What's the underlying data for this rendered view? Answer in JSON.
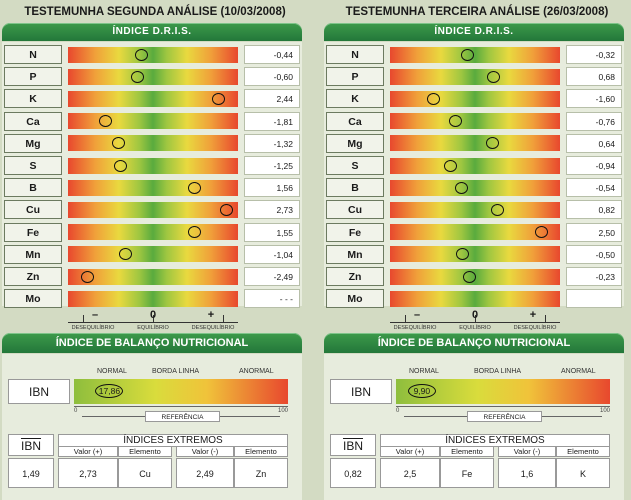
{
  "panels": [
    {
      "title": "TESTEMUNHA SEGUNDA ANÁLISE (10/03/2008)",
      "dris_header": "ÍNDICE D.R.I.S.",
      "rows": [
        {
          "el": "N",
          "val": "-0,44",
          "pos": -0.44
        },
        {
          "el": "P",
          "val": "-0,60",
          "pos": -0.6
        },
        {
          "el": "K",
          "val": "2,44",
          "pos": 2.44
        },
        {
          "el": "Ca",
          "val": "-1,81",
          "pos": -1.81
        },
        {
          "el": "Mg",
          "val": "-1,32",
          "pos": -1.32
        },
        {
          "el": "S",
          "val": "-1,25",
          "pos": -1.25
        },
        {
          "el": "B",
          "val": "1,56",
          "pos": 1.56
        },
        {
          "el": "Cu",
          "val": "2,73",
          "pos": 2.73
        },
        {
          "el": "Fe",
          "val": "1,55",
          "pos": 1.55
        },
        {
          "el": "Mn",
          "val": "-1,04",
          "pos": -1.04
        },
        {
          "el": "Zn",
          "val": "-2,49",
          "pos": -2.49
        },
        {
          "el": "Mo",
          "val": "- - -",
          "pos": null
        }
      ],
      "scale": {
        "minus": "–",
        "zero": "0",
        "plus": "+",
        "l1": "DESEQUILÍBRIO",
        "l2": "EQUILÍBRIO",
        "l3": "DESEQUILÍBRIO"
      },
      "bal_header": "ÍNDICE DE BALANÇO NUTRICIONAL",
      "bal": {
        "normal": "NORMAL",
        "borda": "BORDA LINHA",
        "anormal": "ANORMAL",
        "ibn": "IBN",
        "ibn_value": "17,86",
        "ibn_pos": 17.86,
        "ax0": "0",
        "ax100": "100",
        "ref": "REFERÊNCIA"
      },
      "table": {
        "ibn": "IBN",
        "extremos": "ÍNDICES EXTREMOS",
        "h_vplus": "Valor (+)",
        "h_elem1": "Elemento",
        "h_vminus": "Valor (-)",
        "h_elem2": "Elemento",
        "ibn_val": "1,49",
        "vplus": "2,73",
        "elem1": "Cu",
        "vminus": "2,49",
        "elem2": "Zn"
      }
    },
    {
      "title": "TESTEMUNHA TERCEIRA ANÁLISE (26/03/2008)",
      "dris_header": "ÍNDICE D.R.I.S.",
      "rows": [
        {
          "el": "N",
          "val": "-0,32",
          "pos": -0.32
        },
        {
          "el": "P",
          "val": "0,68",
          "pos": 0.68
        },
        {
          "el": "K",
          "val": "-1,60",
          "pos": -1.6
        },
        {
          "el": "Ca",
          "val": "-0,76",
          "pos": -0.76
        },
        {
          "el": "Mg",
          "val": "0,64",
          "pos": 0.64
        },
        {
          "el": "S",
          "val": "-0,94",
          "pos": -0.94
        },
        {
          "el": "B",
          "val": "-0,54",
          "pos": -0.54
        },
        {
          "el": "Cu",
          "val": "0,82",
          "pos": 0.82
        },
        {
          "el": "Fe",
          "val": "2,50",
          "pos": 2.5
        },
        {
          "el": "Mn",
          "val": "-0,50",
          "pos": -0.5
        },
        {
          "el": "Zn",
          "val": "-0,23",
          "pos": -0.23
        },
        {
          "el": "Mo",
          "val": "",
          "pos": null
        }
      ],
      "scale": {
        "minus": "–",
        "zero": "0",
        "plus": "+",
        "l1": "DESEQUILÍBRIO",
        "l2": "EQUILÍBRIO",
        "l3": "DESEQUILÍBRIO"
      },
      "bal_header": "ÍNDICE DE BALANÇO NUTRICIONAL",
      "bal": {
        "normal": "NORMAL",
        "borda": "BORDA LINHA",
        "anormal": "ANORMAL",
        "ibn": "IBN",
        "ibn_value": "9,90",
        "ibn_pos": 9.9,
        "ax0": "0",
        "ax100": "100",
        "ref": "REFERÊNCIA"
      },
      "table": {
        "ibn": "IBN",
        "extremos": "ÍNDICES EXTREMOS",
        "h_vplus": "Valor (+)",
        "h_elem1": "Elemento",
        "h_vminus": "Valor (-)",
        "h_elem2": "Elemento",
        "ibn_val": "0,82",
        "vplus": "2,5",
        "elem1": "Fe",
        "vminus": "1,6",
        "elem2": "K"
      }
    }
  ]
}
